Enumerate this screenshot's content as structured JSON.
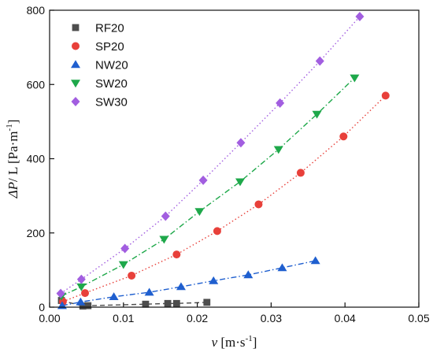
{
  "chart_data": {
    "type": "scatter",
    "title": "",
    "xlabel": {
      "italic": "v",
      "rest": " [m·s",
      "sup": "-1",
      "close": "]"
    },
    "ylabel": {
      "italic": "ΔP",
      "rest": "/ L [Pa·m",
      "sup": "-1",
      "close": "]"
    },
    "xlim": [
      0.0,
      0.05
    ],
    "ylim": [
      0,
      800
    ],
    "xticks": [
      0.0,
      0.01,
      0.02,
      0.03,
      0.04,
      0.05
    ],
    "xtick_labels": [
      "0.00",
      "0.01",
      "0.02",
      "0.03",
      "0.04",
      "0.05"
    ],
    "yticks": [
      0,
      200,
      400,
      600,
      800
    ],
    "ytick_labels": [
      "0",
      "200",
      "400",
      "600",
      "800"
    ],
    "grid": false,
    "legend_position": "top-left",
    "series": [
      {
        "name": "RF20",
        "marker": "square",
        "color": "#4d4d4d",
        "line_style": "dashed",
        "x": [
          0.0016,
          0.0045,
          0.0052,
          0.013,
          0.016,
          0.0172,
          0.0213
        ],
        "y": [
          18,
          3,
          4,
          8,
          10,
          10,
          13
        ]
      },
      {
        "name": "SP20",
        "marker": "circle",
        "color": "#e8403a",
        "line_style": "dotted",
        "x": [
          0.0018,
          0.0048,
          0.0111,
          0.0172,
          0.0227,
          0.0283,
          0.034,
          0.0398,
          0.0455
        ],
        "y": [
          15,
          38,
          85,
          142,
          205,
          277,
          362,
          460,
          570
        ]
      },
      {
        "name": "NW20",
        "marker": "triangle-up",
        "color": "#1f5fcf",
        "line_style": "dash-dot",
        "x": [
          0.0017,
          0.0042,
          0.0087,
          0.0135,
          0.0178,
          0.0222,
          0.0269,
          0.0315,
          0.036
        ],
        "y": [
          4,
          14,
          28,
          40,
          55,
          71,
          87,
          106,
          125
        ]
      },
      {
        "name": "SW20",
        "marker": "triangle-down",
        "color": "#1ea84a",
        "line_style": "dash-dot",
        "x": [
          0.0016,
          0.0043,
          0.01,
          0.0155,
          0.0203,
          0.0258,
          0.031,
          0.0362,
          0.0413
        ],
        "y": [
          30,
          55,
          115,
          183,
          258,
          338,
          425,
          520,
          618
        ]
      },
      {
        "name": "SW30",
        "marker": "diamond",
        "color": "#a25ee0",
        "line_style": "dotted",
        "x": [
          0.0015,
          0.0043,
          0.0102,
          0.0157,
          0.0208,
          0.0259,
          0.0312,
          0.0366,
          0.042
        ],
        "y": [
          37,
          75,
          158,
          245,
          342,
          443,
          550,
          663,
          783
        ]
      }
    ]
  }
}
